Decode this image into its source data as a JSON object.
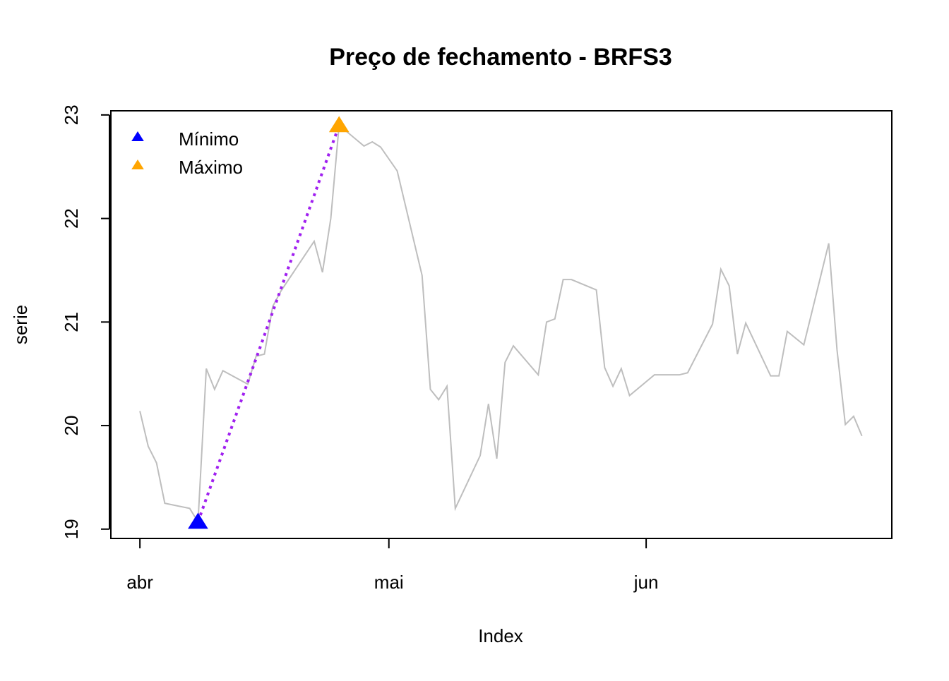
{
  "chart_data": {
    "type": "line",
    "title": "Preço de fechamento - BRFS3",
    "xlabel": "Index",
    "ylabel": "serie",
    "x": [
      0,
      1,
      2,
      3,
      6,
      7,
      8,
      9,
      10,
      13,
      14,
      15,
      16,
      17,
      21,
      22,
      23,
      24,
      27,
      28,
      29,
      31,
      34,
      35,
      36,
      37,
      38,
      41,
      42,
      43,
      44,
      45,
      48,
      49,
      50,
      51,
      52,
      55,
      56,
      57,
      58,
      59,
      62,
      65,
      66,
      69,
      70,
      71,
      72,
      73,
      76,
      77,
      78,
      80,
      83,
      84,
      85,
      86,
      87
    ],
    "series": [
      {
        "color": "#bebebe",
        "values": [
          20.14,
          19.8,
          19.64,
          19.25,
          19.2,
          19.07,
          20.55,
          20.35,
          20.53,
          20.4,
          20.67,
          20.69,
          21.15,
          21.3,
          21.78,
          21.48,
          22.0,
          22.9,
          22.7,
          22.74,
          22.69,
          22.46,
          21.45,
          20.35,
          20.25,
          20.38,
          19.2,
          19.71,
          20.21,
          19.68,
          20.61,
          20.77,
          20.49,
          21.0,
          21.03,
          21.41,
          21.41,
          21.31,
          20.56,
          20.38,
          20.55,
          20.29,
          20.49,
          20.49,
          20.51,
          20.98,
          21.51,
          21.35,
          20.69,
          20.99,
          20.48,
          20.48,
          20.91,
          20.78,
          21.76,
          20.73,
          20.01,
          20.09,
          19.9
        ]
      },
      {
        "name": "Mínimo",
        "color": "#0000ff",
        "marker": "triangle",
        "x": [
          7
        ],
        "values": [
          19.07
        ]
      },
      {
        "name": "Máximo",
        "color": "#ffa500",
        "marker": "triangle",
        "x": [
          24
        ],
        "values": [
          22.9
        ]
      }
    ],
    "connector": {
      "color": "#a020f0",
      "style": "dotted"
    },
    "xlim": [
      -3.5,
      90.6
    ],
    "ylim": [
      18.91,
      23.04
    ],
    "xticks": [
      {
        "value": 0,
        "label": "abr"
      },
      {
        "value": 30,
        "label": "mai"
      },
      {
        "value": 61,
        "label": "jun"
      }
    ],
    "yticks": [
      19,
      20,
      21,
      22,
      23
    ],
    "legend": "top-left"
  }
}
